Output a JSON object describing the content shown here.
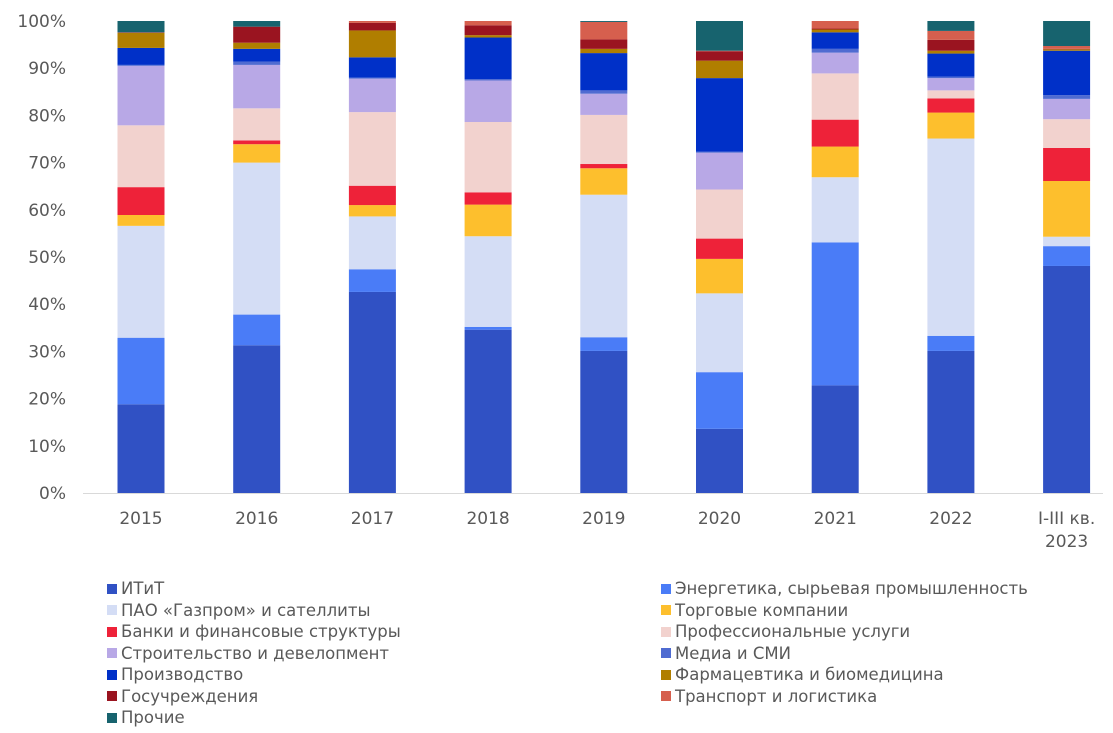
{
  "chart_data": {
    "type": "bar",
    "stacked": true,
    "percent": true,
    "categories": [
      [
        "2015"
      ],
      [
        "2016"
      ],
      [
        "2017"
      ],
      [
        "2018"
      ],
      [
        "2019"
      ],
      [
        "2020"
      ],
      [
        "2021"
      ],
      [
        "2022"
      ],
      [
        "I-III кв.",
        "2023"
      ]
    ],
    "yticks": [
      "0%",
      "10%",
      "20%",
      "30%",
      "40%",
      "50%",
      "60%",
      "70%",
      "80%",
      "90%",
      "100%"
    ],
    "ylim": [
      0,
      100
    ],
    "grid": false,
    "legend_position": "bottom",
    "series": [
      {
        "name": "ИТиТ",
        "color": "#3051C4",
        "values": [
          18.8,
          31.3,
          42.6,
          34.6,
          30.1,
          13.6,
          22.8,
          30.1,
          48.1
        ]
      },
      {
        "name": "Энергетика, сырьевая промышленность",
        "color": "#4A7CF7",
        "values": [
          14.1,
          6.5,
          4.8,
          0.6,
          2.9,
          12.0,
          30.3,
          3.2,
          4.2
        ]
      },
      {
        "name": "ПАО «Газпром» и сателлиты",
        "color": "#D4DDF5",
        "values": [
          23.7,
          32.2,
          11.2,
          19.2,
          30.2,
          16.7,
          13.8,
          41.8,
          2.0
        ]
      },
      {
        "name": "Торговые компании",
        "color": "#FDBF2D",
        "values": [
          2.3,
          3.9,
          2.4,
          6.7,
          5.6,
          7.3,
          6.5,
          5.5,
          11.8
        ]
      },
      {
        "name": "Банки и финансовые структуры",
        "color": "#EE2239",
        "values": [
          5.9,
          0.8,
          4.1,
          2.6,
          0.9,
          4.3,
          5.7,
          3.0,
          7.0
        ]
      },
      {
        "name": "Профессиональные услуги",
        "color": "#F2D2CE",
        "values": [
          13.1,
          6.8,
          15.6,
          14.9,
          10.4,
          10.4,
          9.8,
          1.7,
          6.1
        ]
      },
      {
        "name": "Строительство и девелопмент",
        "color": "#B8A8E6",
        "values": [
          12.6,
          9.2,
          7.1,
          8.8,
          4.5,
          7.8,
          4.4,
          2.6,
          4.3
        ]
      },
      {
        "name": "Медиа и СМИ",
        "color": "#4F6BD1",
        "values": [
          0.2,
          0.7,
          0.2,
          0.3,
          0.7,
          0.2,
          0.8,
          0.3,
          0.8
        ]
      },
      {
        "name": "Производство",
        "color": "#0030C8",
        "values": [
          3.6,
          2.7,
          4.3,
          8.8,
          7.9,
          15.6,
          3.5,
          4.9,
          9.4
        ]
      },
      {
        "name": "Фармацевтика и биомедицина",
        "color": "#B07E00",
        "values": [
          3.2,
          1.3,
          5.7,
          0.5,
          0.9,
          3.7,
          0.6,
          0.6,
          0.3
        ]
      },
      {
        "name": "Госучреждения",
        "color": "#9A1420",
        "values": [
          0.1,
          3.4,
          1.6,
          2.1,
          2.0,
          2.0,
          0.2,
          2.3,
          0.1
        ]
      },
      {
        "name": "Транспорт и логистика",
        "color": "#D65F4E",
        "values": [
          0.0,
          0.0,
          0.4,
          0.9,
          3.7,
          0.1,
          1.6,
          1.9,
          0.6
        ]
      },
      {
        "name": "Прочие",
        "color": "#17636E",
        "values": [
          2.4,
          1.2,
          0.0,
          0.0,
          0.2,
          6.3,
          0.0,
          2.1,
          5.3
        ]
      }
    ]
  }
}
